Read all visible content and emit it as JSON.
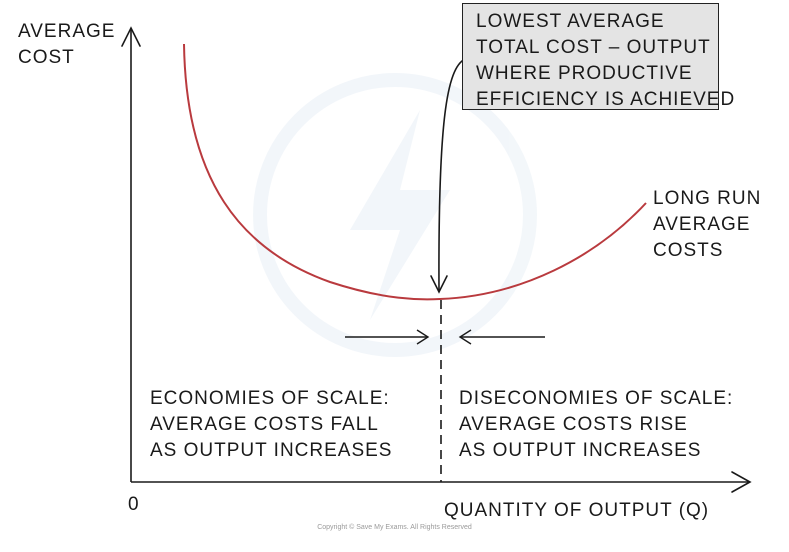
{
  "y_axis_label": [
    "AVERAGE",
    "COST"
  ],
  "x_axis_label": "QUANTITY OF OUTPUT (Q)",
  "origin_label": "0",
  "callout": [
    "LOWEST AVERAGE",
    "TOTAL COST – OUTPUT",
    "WHERE PRODUCTIVE",
    "EFFICIENCY IS ACHIEVED"
  ],
  "curve_label": [
    "LONG RUN",
    "AVERAGE",
    "COSTS"
  ],
  "economies": [
    "ECONOMIES OF SCALE:",
    "AVERAGE COSTS FALL",
    "AS OUTPUT INCREASES"
  ],
  "diseconomies": [
    "DISECONOMIES OF SCALE:",
    "AVERAGE COSTS RISE",
    "AS OUTPUT INCREASES"
  ],
  "copyright": "Copyright © Save My Exams. All Rights Reserved",
  "colors": {
    "curve": "#b93a3e",
    "ink": "#1a1a1a",
    "callout_fill": "#e4e4e4"
  }
}
